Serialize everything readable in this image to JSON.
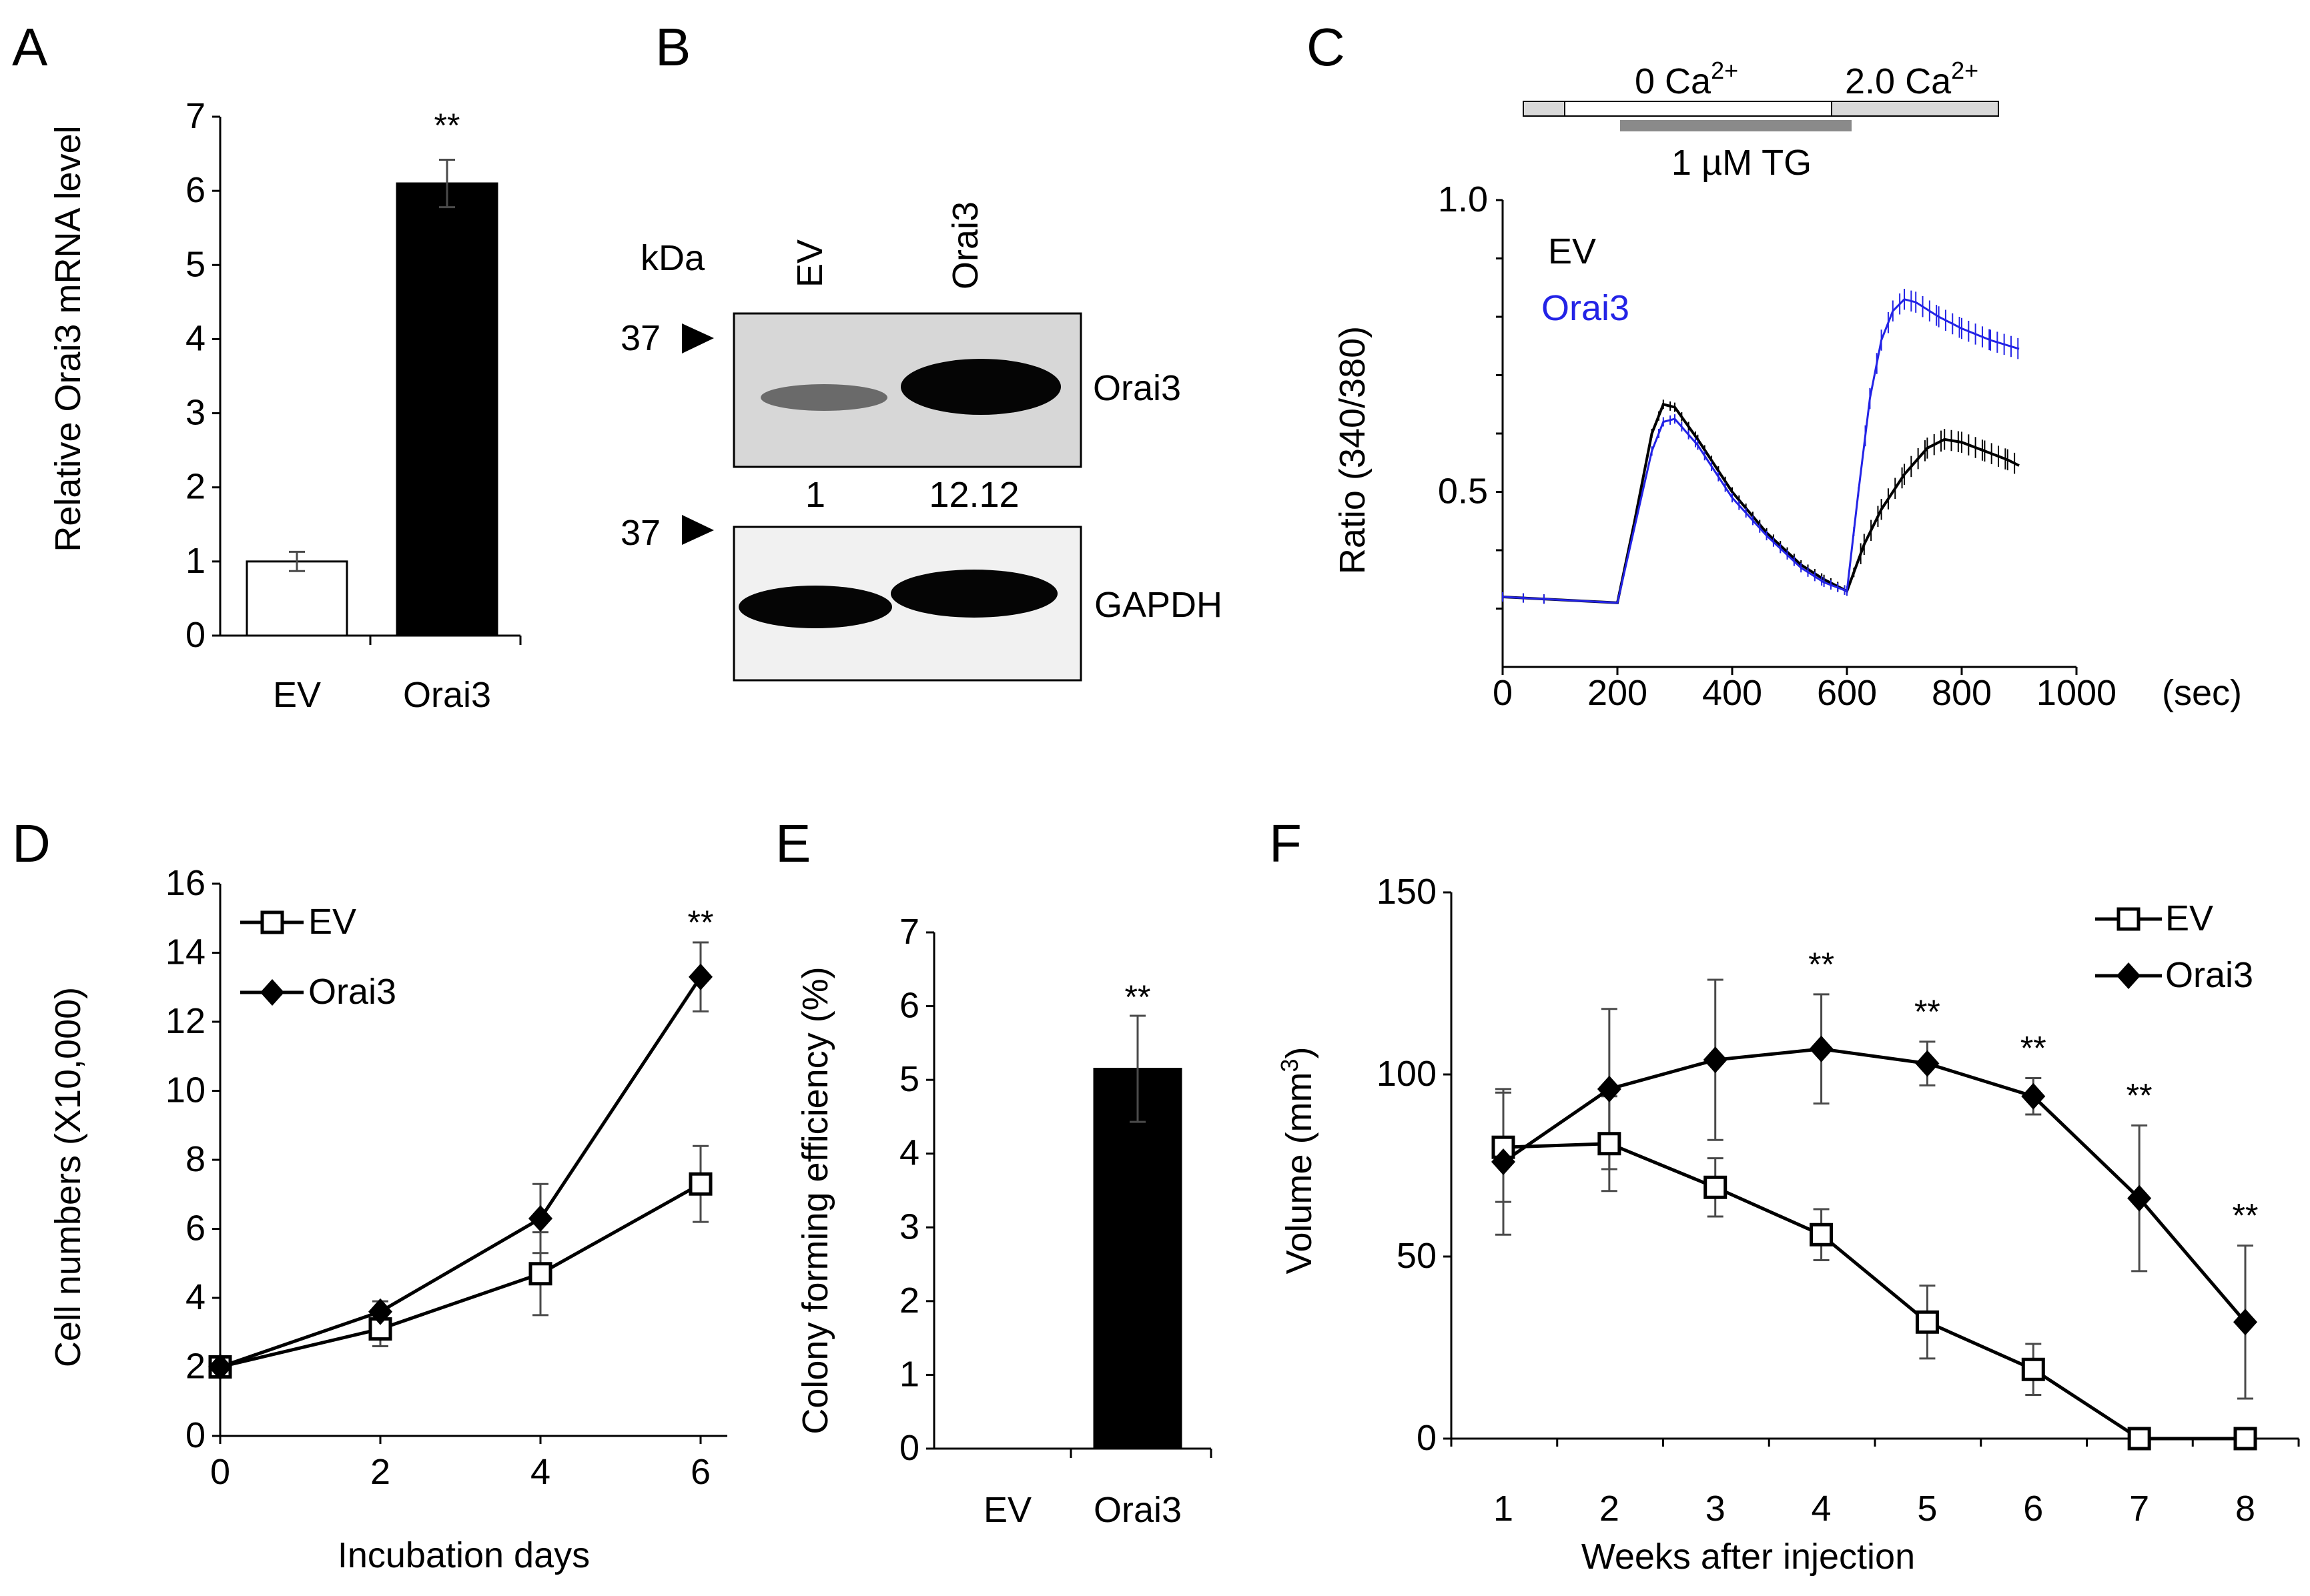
{
  "colors": {
    "ev_trace": "#000000",
    "orai3_trace": "#2323e6",
    "bar_ev": "#ffffff",
    "bar_orai3": "#000000",
    "error": "#4a4a4a"
  },
  "panels": {
    "a": "A",
    "b": "B",
    "c": "C",
    "d": "D",
    "e": "E",
    "f": "F"
  },
  "blot": {
    "kda_label": "kDa",
    "lane_labels": [
      "EV",
      "Orai3"
    ],
    "marker_top": "37",
    "marker_bottom": "37",
    "band_label_top": "Orai3",
    "band_label_bottom": "GAPDH",
    "quant": [
      "1",
      "12.12"
    ]
  },
  "protocol": {
    "zero_ca": "0  Ca",
    "two_ca": "2.0  Ca",
    "superscript": "2+",
    "tg": "1 µM TG"
  },
  "chart_data": [
    {
      "id": "A",
      "type": "bar",
      "categories": [
        "EV",
        "Orai3"
      ],
      "values": [
        1.0,
        6.1
      ],
      "errors": [
        0.13,
        0.32
      ],
      "ylim": [
        0,
        7
      ],
      "yticks": [
        "0",
        "1",
        "2",
        "3",
        "4",
        "5",
        "6",
        "7"
      ],
      "ylabel": "Relative Orai3 mRNA level",
      "annotations": [
        {
          "category": "Orai3",
          "text": "**"
        }
      ]
    },
    {
      "id": "C",
      "type": "line",
      "xlabel": "(sec)",
      "ylabel": "Ratio (340/380)",
      "xlim": [
        0,
        1000
      ],
      "xticks": [
        "0",
        "200",
        "400",
        "600",
        "800",
        "1000"
      ],
      "ylim": [
        0.2,
        1.0
      ],
      "yticks": [
        "0.5",
        "1.0"
      ],
      "legend": [
        "EV",
        "Orai3"
      ],
      "series": [
        {
          "name": "EV",
          "points": [
            [
              0,
              0.32
            ],
            [
              100,
              0.315
            ],
            [
              200,
              0.31
            ],
            [
              230,
              0.45
            ],
            [
              260,
              0.6
            ],
            [
              280,
              0.65
            ],
            [
              300,
              0.645
            ],
            [
              340,
              0.59
            ],
            [
              400,
              0.5
            ],
            [
              460,
              0.43
            ],
            [
              520,
              0.375
            ],
            [
              560,
              0.35
            ],
            [
              600,
              0.33
            ],
            [
              630,
              0.41
            ],
            [
              660,
              0.47
            ],
            [
              700,
              0.53
            ],
            [
              740,
              0.575
            ],
            [
              770,
              0.59
            ],
            [
              800,
              0.585
            ],
            [
              840,
              0.57
            ],
            [
              880,
              0.555
            ],
            [
              900,
              0.545
            ]
          ]
        },
        {
          "name": "Orai3",
          "points": [
            [
              0,
              0.32
            ],
            [
              100,
              0.315
            ],
            [
              200,
              0.31
            ],
            [
              230,
              0.44
            ],
            [
              260,
              0.57
            ],
            [
              280,
              0.62
            ],
            [
              300,
              0.625
            ],
            [
              340,
              0.58
            ],
            [
              400,
              0.49
            ],
            [
              460,
              0.425
            ],
            [
              520,
              0.37
            ],
            [
              560,
              0.345
            ],
            [
              600,
              0.33
            ],
            [
              620,
              0.5
            ],
            [
              640,
              0.66
            ],
            [
              660,
              0.76
            ],
            [
              680,
              0.81
            ],
            [
              700,
              0.83
            ],
            [
              720,
              0.825
            ],
            [
              760,
              0.8
            ],
            [
              800,
              0.78
            ],
            [
              850,
              0.76
            ],
            [
              900,
              0.745
            ]
          ]
        }
      ]
    },
    {
      "id": "D",
      "type": "line",
      "xlabel": "Incubation days",
      "ylabel": "Cell numbers (X10,000)",
      "x": [
        0,
        2,
        4,
        6
      ],
      "xticks": [
        "0",
        "2",
        "4",
        "6"
      ],
      "ylim": [
        0,
        16
      ],
      "yticks": [
        "0",
        "2",
        "4",
        "6",
        "8",
        "10",
        "12",
        "14",
        "16"
      ],
      "legend": [
        "EV",
        "Orai3"
      ],
      "series": [
        {
          "name": "EV",
          "marker": "square-open",
          "values": [
            2.0,
            3.1,
            4.7,
            7.3
          ],
          "errors": [
            0.1,
            0.5,
            1.2,
            1.1
          ]
        },
        {
          "name": "Orai3",
          "marker": "diamond-filled",
          "values": [
            2.0,
            3.6,
            6.3,
            13.3
          ],
          "errors": [
            0.1,
            0.3,
            1.0,
            1.0
          ]
        }
      ],
      "annotations": [
        {
          "x": 6,
          "text": "**"
        }
      ]
    },
    {
      "id": "E",
      "type": "bar",
      "categories": [
        "EV",
        "Orai3"
      ],
      "values": [
        0,
        5.15
      ],
      "errors": [
        0,
        0.72
      ],
      "ylim": [
        0,
        7
      ],
      "yticks": [
        "0",
        "1",
        "2",
        "3",
        "4",
        "5",
        "6",
        "7"
      ],
      "ylabel": "Colony forming efficiency (%)",
      "annotations": [
        {
          "category": "Orai3",
          "text": "**"
        }
      ]
    },
    {
      "id": "F",
      "type": "line",
      "xlabel": "Weeks after injection",
      "ylabel": "Volume (mm",
      "ylabel_sup": "3",
      "ylabel_close": ")",
      "x": [
        1,
        2,
        3,
        4,
        5,
        6,
        7,
        8
      ],
      "xticks": [
        "1",
        "2",
        "3",
        "4",
        "5",
        "6",
        "7",
        "8"
      ],
      "ylim": [
        0,
        150
      ],
      "yticks": [
        "0",
        "50",
        "100",
        "150"
      ],
      "legend": [
        "EV",
        "Orai3"
      ],
      "series": [
        {
          "name": "EV",
          "marker": "square-open",
          "values": [
            80,
            81,
            69,
            56,
            32,
            19,
            0,
            0
          ],
          "errors": [
            15,
            13,
            8,
            7,
            10,
            7,
            0,
            0
          ]
        },
        {
          "name": "Orai3",
          "marker": "diamond-filled",
          "values": [
            76,
            96,
            104,
            107,
            103,
            94,
            66,
            32
          ],
          "errors": [
            20,
            22,
            22,
            15,
            6,
            5,
            20,
            21
          ]
        }
      ],
      "annotations": [
        {
          "x": 4,
          "text": "**"
        },
        {
          "x": 5,
          "text": "**"
        },
        {
          "x": 6,
          "text": "**"
        },
        {
          "x": 7,
          "text": "**"
        },
        {
          "x": 8,
          "text": "**"
        }
      ]
    }
  ]
}
